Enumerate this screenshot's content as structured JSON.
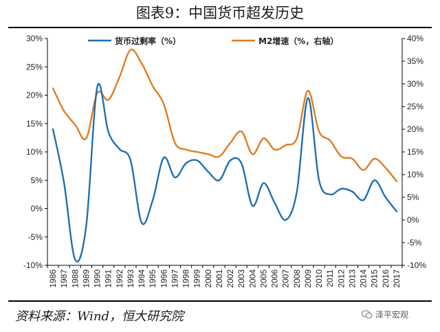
{
  "title": "图表9：中国货币超发历史",
  "source": "资料来源：Wind，恒大研究院",
  "watermark": "泽平宏观",
  "colors": {
    "series1": "#1f6fb5",
    "series2": "#e07b20",
    "axis": "#000000"
  },
  "chart_data": {
    "type": "line",
    "x": [
      "1986",
      "1987",
      "1988",
      "1989",
      "1990",
      "1991",
      "1992",
      "1993",
      "1994",
      "1995",
      "1996",
      "1997",
      "1998",
      "1999",
      "2000",
      "2001",
      "2002",
      "2003",
      "2004",
      "2005",
      "2006",
      "2007",
      "2008",
      "2009",
      "2010",
      "2011",
      "2012",
      "2013",
      "2014",
      "2015",
      "2016",
      "2017"
    ],
    "series": [
      {
        "name": "货币过剩率（%）",
        "axis": "left",
        "values": [
          14,
          4.5,
          -9,
          -3,
          21.5,
          13.5,
          10.5,
          8.5,
          -2.5,
          1.5,
          9,
          5.5,
          8,
          8.5,
          6.5,
          5,
          8.5,
          8,
          0.5,
          4.5,
          1,
          -2,
          3,
          19.5,
          5,
          2.5,
          3.5,
          3,
          1.5,
          5,
          2,
          -0.5
        ]
      },
      {
        "name": "M2增速（%，右轴）",
        "axis": "right",
        "values": [
          29,
          24,
          21,
          18,
          28,
          26.5,
          31.5,
          37.5,
          34.5,
          29.5,
          25.5,
          17,
          15.5,
          15,
          14.5,
          14,
          17,
          19.5,
          14.5,
          18,
          15.5,
          16.5,
          18,
          28.5,
          19.5,
          17.5,
          14,
          13.5,
          11,
          13.5,
          11.5,
          8.5
        ]
      }
    ],
    "y_left": {
      "ticks": [
        "30%",
        "25%",
        "20%",
        "15%",
        "10%",
        "5%",
        "0%",
        "-5%",
        "-10%"
      ],
      "ylim": [
        -10,
        30
      ]
    },
    "y_right": {
      "ticks": [
        "40%",
        "35%",
        "30%",
        "25%",
        "20%",
        "15%",
        "10%",
        "5%",
        "0%",
        "-5%",
        "-10%"
      ],
      "ylim": [
        -10,
        40
      ]
    },
    "legend_placement": "top",
    "grid": false
  }
}
